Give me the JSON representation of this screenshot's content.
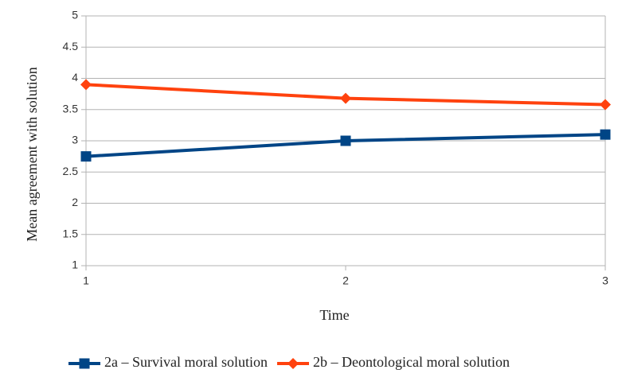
{
  "chart_data": {
    "type": "line",
    "x_label": "Time",
    "y_label": "Mean agreement with solution",
    "x": [
      1,
      2,
      3
    ],
    "xlim": [
      1,
      3
    ],
    "xticks": [
      1,
      2,
      3
    ],
    "ylim": [
      1,
      5
    ],
    "yticks": [
      1,
      1.5,
      2,
      2.5,
      3,
      3.5,
      4,
      4.5,
      5
    ],
    "grid": true,
    "legend": "bottom",
    "series": [
      {
        "name": "2a – Survival moral solution",
        "color": "#004586",
        "marker": "square",
        "values": [
          2.75,
          3.0,
          3.1
        ]
      },
      {
        "name": "2b – Deontological moral solution",
        "color": "#ff420e",
        "marker": "diamond",
        "values": [
          3.9,
          3.68,
          3.58
        ]
      }
    ]
  }
}
